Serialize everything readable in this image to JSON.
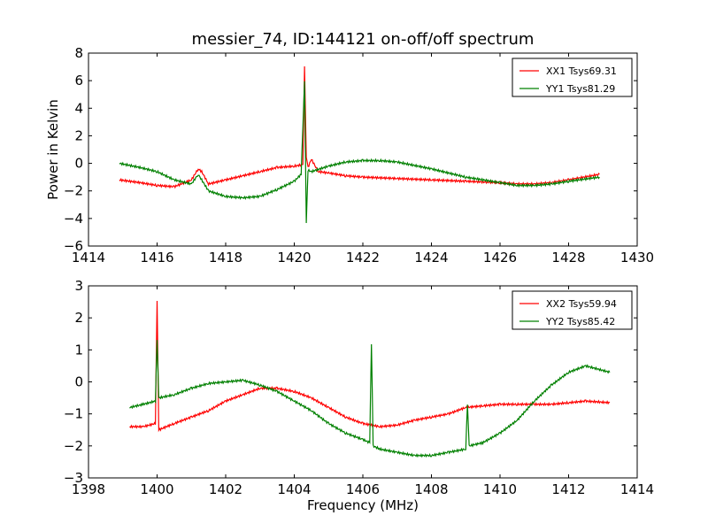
{
  "chart_data": [
    {
      "type": "line",
      "title": "messier_74, ID:144121 on-off/off spectrum",
      "xlabel": "",
      "ylabel": "Power in Kelvin",
      "xlim": [
        1414,
        1430
      ],
      "ylim": [
        -6,
        8
      ],
      "xticks": [
        1414,
        1416,
        1418,
        1420,
        1422,
        1424,
        1426,
        1428,
        1430
      ],
      "yticks": [
        -6,
        -4,
        -2,
        0,
        2,
        4,
        6,
        8
      ],
      "grid": false,
      "legend": "top-right",
      "series": [
        {
          "name": "XX1 Tsys69.31",
          "color": "#ff0000",
          "x": [
            1414.9,
            1415.5,
            1416,
            1416.5,
            1417,
            1417.2,
            1417.3,
            1417.5,
            1418,
            1418.5,
            1419,
            1419.5,
            1420,
            1420.25,
            1420.3,
            1420.35,
            1420.4,
            1420.5,
            1420.7,
            1421,
            1421.5,
            1422,
            1423,
            1424,
            1425,
            1426,
            1426.5,
            1427,
            1427.5,
            1428,
            1428.9
          ],
          "y": [
            -1.2,
            -1.4,
            -1.6,
            -1.7,
            -1.2,
            -0.4,
            -0.6,
            -1.5,
            -1.2,
            -0.9,
            -0.6,
            -0.3,
            -0.2,
            -0.1,
            7.0,
            0.5,
            -0.3,
            0.3,
            -0.6,
            -0.7,
            -0.9,
            -1.0,
            -1.1,
            -1.2,
            -1.3,
            -1.4,
            -1.5,
            -1.5,
            -1.4,
            -1.2,
            -0.8
          ]
        },
        {
          "name": "YY1 Tsys81.29",
          "color": "#008000",
          "x": [
            1414.9,
            1415.5,
            1416,
            1416.5,
            1417,
            1417.2,
            1417.5,
            1418,
            1418.5,
            1419,
            1419.5,
            1420,
            1420.2,
            1420.3,
            1420.35,
            1420.4,
            1420.5,
            1421,
            1421.5,
            1422,
            1422.5,
            1423,
            1424,
            1425,
            1426,
            1426.5,
            1427,
            1427.5,
            1428,
            1428.9
          ],
          "y": [
            0.0,
            -0.3,
            -0.6,
            -1.2,
            -1.5,
            -0.8,
            -2.0,
            -2.4,
            -2.5,
            -2.4,
            -1.9,
            -1.3,
            -0.8,
            6.0,
            -4.4,
            -0.5,
            -0.6,
            -0.2,
            0.1,
            0.2,
            0.2,
            0.1,
            -0.4,
            -1.0,
            -1.4,
            -1.6,
            -1.6,
            -1.5,
            -1.3,
            -1.0
          ]
        }
      ]
    },
    {
      "type": "line",
      "title": "",
      "xlabel": "Frequency (MHz)",
      "ylabel": "",
      "xlim": [
        1398,
        1414
      ],
      "ylim": [
        -3,
        3
      ],
      "xticks": [
        1398,
        1400,
        1402,
        1404,
        1406,
        1408,
        1410,
        1412,
        1414
      ],
      "yticks": [
        -3,
        -2,
        -1,
        0,
        1,
        2,
        3
      ],
      "grid": false,
      "legend": "top-right",
      "series": [
        {
          "name": "XX2 Tsys59.94",
          "color": "#ff0000",
          "x": [
            1399.2,
            1399.6,
            1399.95,
            1400.0,
            1400.05,
            1400.5,
            1401,
            1401.5,
            1402,
            1402.5,
            1403,
            1403.5,
            1404,
            1404.5,
            1405,
            1405.5,
            1406,
            1406.5,
            1407,
            1407.5,
            1408,
            1408.5,
            1409,
            1409.5,
            1410,
            1410.5,
            1411,
            1411.5,
            1412,
            1412.5,
            1413.2
          ],
          "y": [
            -1.4,
            -1.4,
            -1.3,
            2.5,
            -1.5,
            -1.3,
            -1.1,
            -0.9,
            -0.6,
            -0.4,
            -0.2,
            -0.2,
            -0.3,
            -0.5,
            -0.8,
            -1.1,
            -1.3,
            -1.4,
            -1.35,
            -1.2,
            -1.1,
            -1.0,
            -0.8,
            -0.75,
            -0.7,
            -0.7,
            -0.7,
            -0.7,
            -0.65,
            -0.6,
            -0.65
          ]
        },
        {
          "name": "YY2 Tsys85.42",
          "color": "#008000",
          "x": [
            1399.2,
            1399.6,
            1399.95,
            1400.0,
            1400.05,
            1400.5,
            1401,
            1401.5,
            1402,
            1402.5,
            1403,
            1403.5,
            1404,
            1404.5,
            1405,
            1405.5,
            1406,
            1406.2,
            1406.25,
            1406.3,
            1406.5,
            1407,
            1407.5,
            1408,
            1408.5,
            1409,
            1409.05,
            1409.1,
            1409.5,
            1410,
            1410.5,
            1411,
            1411.5,
            1412,
            1412.5,
            1413.2
          ],
          "y": [
            -0.8,
            -0.7,
            -0.6,
            1.3,
            -0.5,
            -0.4,
            -0.2,
            -0.05,
            0.0,
            0.05,
            -0.1,
            -0.3,
            -0.6,
            -0.9,
            -1.3,
            -1.6,
            -1.8,
            -1.9,
            1.2,
            -2.0,
            -2.1,
            -2.2,
            -2.3,
            -2.3,
            -2.2,
            -2.1,
            -0.7,
            -2.0,
            -1.9,
            -1.6,
            -1.2,
            -0.6,
            -0.1,
            0.3,
            0.5,
            0.3
          ]
        }
      ]
    }
  ]
}
